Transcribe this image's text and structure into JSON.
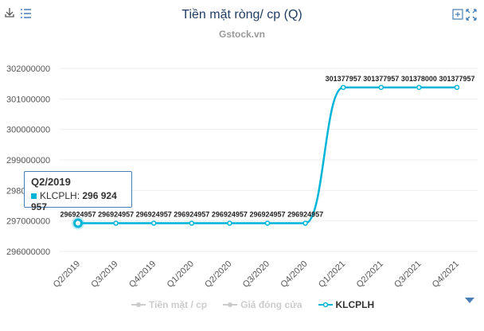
{
  "header": {
    "title": "Tiền mặt ròng/ cp (Q)",
    "subtitle": "Gstock.vn"
  },
  "toolbar": {
    "left_icons": [
      "download-icon",
      "menu-icon"
    ],
    "right_icons": [
      "zoom-in-icon",
      "fullscreen-icon"
    ]
  },
  "tooltip": {
    "title": "Q2/2019",
    "series": "KLCPLH",
    "value": "296 924 957"
  },
  "legend": [
    {
      "label": "Tiền mặt / cp",
      "color": "#cccccc",
      "active": false
    },
    {
      "label": "Giá đóng cửa",
      "color": "#cccccc",
      "active": false
    },
    {
      "label": "KLCPLH",
      "color": "#00b4d8",
      "active": true
    }
  ],
  "colors": {
    "series": "#00b4d8",
    "title": "#1f3a5f",
    "axis_text": "#555555",
    "accent": "#4a7fb5"
  },
  "chart_data": {
    "type": "line",
    "title": "Tiền mặt ròng/ cp (Q)",
    "subtitle": "Gstock.vn",
    "categories": [
      "Q2/2019",
      "Q3/2019",
      "Q4/2019",
      "Q1/2020",
      "Q2/2020",
      "Q3/2020",
      "Q4/2020",
      "Q1/2021",
      "Q2/2021",
      "Q3/2021",
      "Q4/2021"
    ],
    "series": [
      {
        "name": "KLCPLH",
        "values": [
          296924957,
          296924957,
          296924957,
          296924957,
          296924957,
          296924957,
          296924957,
          301377957,
          301377957,
          301378000,
          301377957
        ]
      }
    ],
    "yticks": [
      302000000,
      301000000,
      300000000,
      299000000,
      298000000,
      297000000,
      296000000
    ],
    "ylim": [
      296000000,
      302000000
    ],
    "grid": true,
    "legend_position": "bottom"
  }
}
